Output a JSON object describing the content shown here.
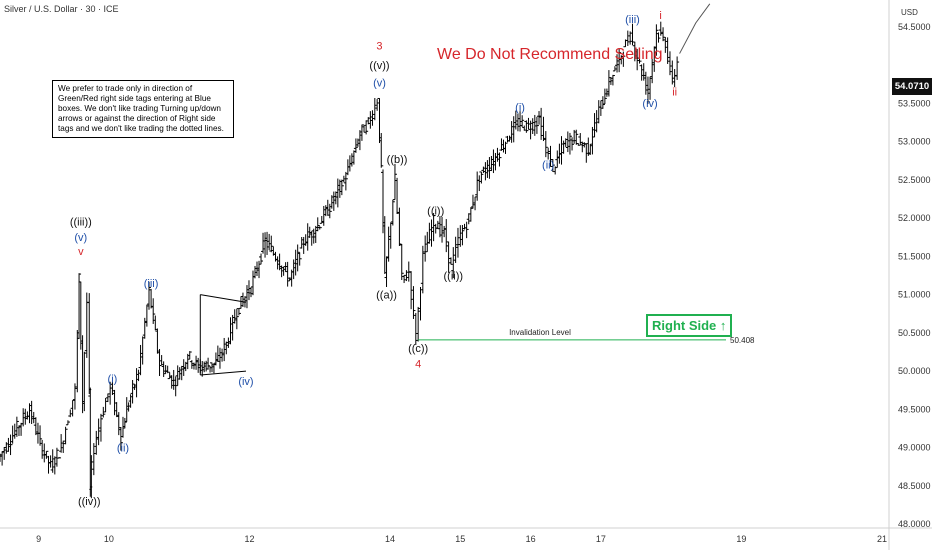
{
  "header": {
    "title": "Silver / U.S. Dollar · 30 · ICE"
  },
  "currency_label": "USD",
  "current_price_tag": "54.0710",
  "note_text": "We prefer to trade only in direction of Green/Red right side tags entering at Blue boxes. We don't like trading Turning up/down arrows or against the direction of Right side tags and we don't like trading the dotted lines.",
  "headline": "We Do Not Recommend Selling",
  "right_side_tag": {
    "label": "Right Side",
    "arrow": "↑",
    "color": "#20b050"
  },
  "invalidation": {
    "label": "Invalidation Level",
    "value": 50.408,
    "value_label": "50.408",
    "color": "#20b050"
  },
  "colors": {
    "candle": "#000000",
    "wave_black": "#111111",
    "wave_blue": "#1f4fa8",
    "wave_red": "#d6262b",
    "headline": "#d6262b"
  },
  "chart_data": {
    "type": "candlestick",
    "x_unit": "day",
    "xlim": [
      8.45,
      21.1
    ],
    "ylim": [
      47.95,
      54.85
    ],
    "x_ticks": [
      {
        "x": 9,
        "label": "9"
      },
      {
        "x": 10,
        "label": "10"
      },
      {
        "x": 12,
        "label": "12"
      },
      {
        "x": 14,
        "label": "14"
      },
      {
        "x": 15,
        "label": "15"
      },
      {
        "x": 16,
        "label": "16"
      },
      {
        "x": 17,
        "label": "17"
      },
      {
        "x": 19,
        "label": "19"
      },
      {
        "x": 21,
        "label": "21"
      }
    ],
    "y_ticks": [
      "48.0000",
      "48.5000",
      "49.0000",
      "49.5000",
      "50.0000",
      "50.5000",
      "51.0000",
      "51.5000",
      "52.0000",
      "52.5000",
      "53.0000",
      "53.5000",
      "54.5000"
    ],
    "price_path": [
      [
        8.45,
        48.85
      ],
      [
        8.75,
        49.3
      ],
      [
        8.9,
        49.5
      ],
      [
        9.05,
        49.05
      ],
      [
        9.2,
        48.75
      ],
      [
        9.35,
        49.0
      ],
      [
        9.45,
        49.4
      ],
      [
        9.55,
        49.75
      ],
      [
        9.6,
        51.2
      ],
      [
        9.65,
        49.6
      ],
      [
        9.72,
        50.9
      ],
      [
        9.75,
        48.45
      ],
      [
        9.82,
        49.0
      ],
      [
        9.92,
        49.4
      ],
      [
        10.05,
        49.8
      ],
      [
        10.2,
        49.15
      ],
      [
        10.28,
        49.5
      ],
      [
        10.45,
        50.0
      ],
      [
        10.6,
        51.05
      ],
      [
        10.75,
        50.1
      ],
      [
        10.95,
        49.85
      ],
      [
        11.15,
        50.2
      ],
      [
        11.3,
        50.05
      ],
      [
        11.55,
        50.1
      ],
      [
        11.7,
        50.35
      ],
      [
        11.85,
        50.8
      ],
      [
        12.05,
        51.1
      ],
      [
        12.25,
        51.7
      ],
      [
        12.4,
        51.5
      ],
      [
        12.6,
        51.2
      ],
      [
        12.8,
        51.7
      ],
      [
        13.0,
        51.9
      ],
      [
        13.2,
        52.2
      ],
      [
        13.4,
        52.55
      ],
      [
        13.6,
        53.1
      ],
      [
        13.75,
        53.3
      ],
      [
        13.85,
        53.55
      ],
      [
        13.9,
        52.6
      ],
      [
        13.95,
        51.2
      ],
      [
        14.1,
        52.5
      ],
      [
        14.2,
        51.2
      ],
      [
        14.3,
        51.3
      ],
      [
        14.4,
        50.45
      ],
      [
        14.5,
        51.5
      ],
      [
        14.65,
        51.95
      ],
      [
        14.8,
        51.8
      ],
      [
        14.9,
        51.35
      ],
      [
        15.0,
        51.7
      ],
      [
        15.15,
        52.0
      ],
      [
        15.3,
        52.55
      ],
      [
        15.5,
        52.75
      ],
      [
        15.7,
        53.05
      ],
      [
        15.85,
        53.25
      ],
      [
        16.0,
        53.2
      ],
      [
        16.15,
        53.3
      ],
      [
        16.25,
        52.9
      ],
      [
        16.35,
        52.65
      ],
      [
        16.5,
        52.95
      ],
      [
        16.65,
        53.05
      ],
      [
        16.85,
        52.9
      ],
      [
        17.0,
        53.4
      ],
      [
        17.2,
        53.9
      ],
      [
        17.35,
        54.2
      ],
      [
        17.45,
        54.4
      ],
      [
        17.55,
        54.1
      ],
      [
        17.7,
        53.65
      ],
      [
        17.82,
        54.45
      ],
      [
        17.95,
        54.3
      ],
      [
        18.05,
        53.75
      ],
      [
        18.12,
        54.05
      ]
    ],
    "projection_path": [
      [
        18.12,
        54.15
      ],
      [
        18.35,
        54.55
      ],
      [
        18.55,
        54.8
      ]
    ],
    "triangle": {
      "upper": [
        [
          11.3,
          51.0
        ],
        [
          11.95,
          50.9
        ]
      ],
      "lower": [
        [
          11.3,
          49.95
        ],
        [
          11.95,
          50.0
        ]
      ]
    },
    "wave_labels": [
      {
        "x": 9.6,
        "y": 51.9,
        "text": "((iii))",
        "color": "black",
        "above": true
      },
      {
        "x": 9.6,
        "y": 51.7,
        "text": "(v)",
        "color": "blue",
        "above": true
      },
      {
        "x": 9.6,
        "y": 51.52,
        "text": "v",
        "color": "red",
        "above": true
      },
      {
        "x": 9.72,
        "y": 48.25,
        "text": "((iv))",
        "color": "black",
        "above": false
      },
      {
        "x": 10.05,
        "y": 49.85,
        "text": "(i)",
        "color": "blue",
        "above": true
      },
      {
        "x": 10.2,
        "y": 48.95,
        "text": "(ii)",
        "color": "blue",
        "above": false
      },
      {
        "x": 10.6,
        "y": 51.1,
        "text": "(iii)",
        "color": "blue",
        "above": true
      },
      {
        "x": 11.95,
        "y": 49.82,
        "text": "(iv)",
        "color": "blue",
        "above": false
      },
      {
        "x": 13.85,
        "y": 54.2,
        "text": "3",
        "color": "red",
        "above": true
      },
      {
        "x": 13.85,
        "y": 53.95,
        "text": "((v))",
        "color": "black",
        "above": true
      },
      {
        "x": 13.85,
        "y": 53.72,
        "text": "(v)",
        "color": "blue",
        "above": true
      },
      {
        "x": 14.1,
        "y": 52.72,
        "text": "((b))",
        "color": "black",
        "above": true
      },
      {
        "x": 13.95,
        "y": 50.95,
        "text": "((a))",
        "color": "black",
        "above": false
      },
      {
        "x": 14.4,
        "y": 50.25,
        "text": "((c))",
        "color": "black",
        "above": false
      },
      {
        "x": 14.4,
        "y": 50.05,
        "text": "4",
        "color": "red",
        "above": false
      },
      {
        "x": 14.65,
        "y": 52.05,
        "text": "((i))",
        "color": "black",
        "above": true
      },
      {
        "x": 14.9,
        "y": 51.2,
        "text": "((ii))",
        "color": "black",
        "above": false
      },
      {
        "x": 15.85,
        "y": 53.4,
        "text": "(i)",
        "color": "blue",
        "above": true
      },
      {
        "x": 16.25,
        "y": 52.65,
        "text": "(ii)",
        "color": "blue",
        "above": false
      },
      {
        "x": 17.45,
        "y": 54.55,
        "text": "(iii)",
        "color": "blue",
        "above": true
      },
      {
        "x": 17.7,
        "y": 53.45,
        "text": "(iv)",
        "color": "blue",
        "above": false
      },
      {
        "x": 17.85,
        "y": 54.6,
        "text": "i",
        "color": "red",
        "above": true
      },
      {
        "x": 18.05,
        "y": 53.6,
        "text": "ii",
        "color": "red",
        "above": false
      }
    ]
  }
}
